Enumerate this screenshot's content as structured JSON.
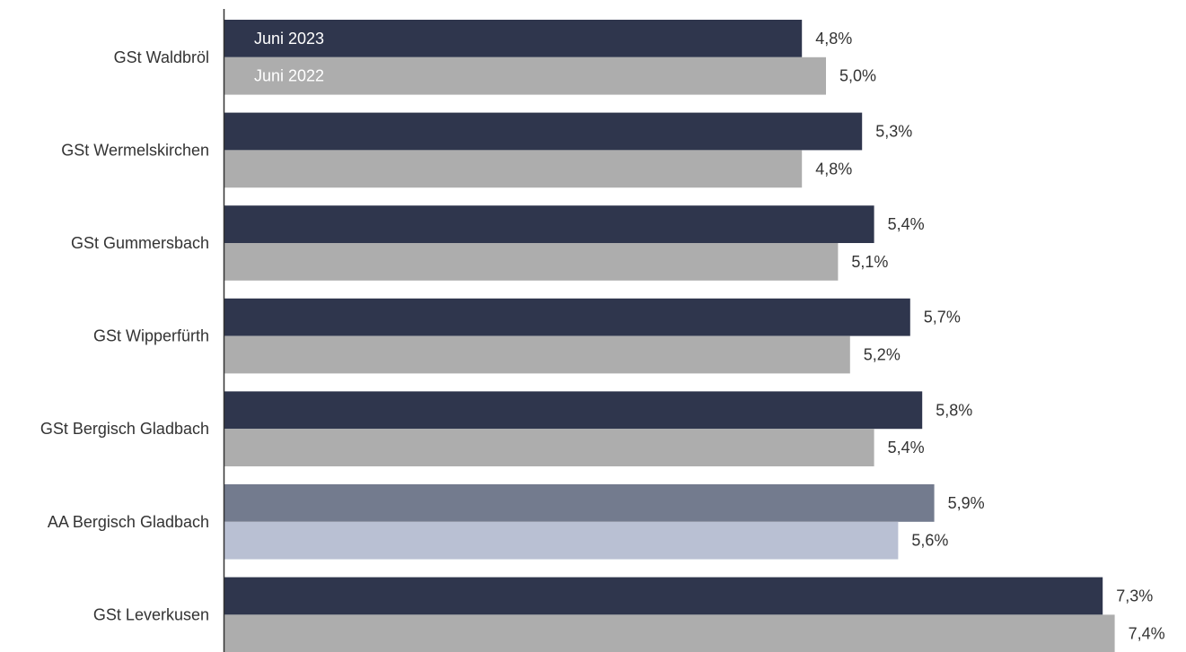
{
  "chart_data": {
    "type": "bar",
    "orientation": "horizontal",
    "categories": [
      "GSt Waldbröl",
      "GSt Wermelskirchen",
      "GSt Gummersbach",
      "GSt Wipperfürth",
      "GSt Bergisch Gladbach",
      "AA Bergisch Gladbach",
      "GSt Leverkusen"
    ],
    "series": [
      {
        "name": "Juni 2023",
        "values": [
          4.8,
          5.3,
          5.4,
          5.7,
          5.8,
          5.9,
          7.3
        ],
        "labels": [
          "4,8%",
          "5,3%",
          "5,4%",
          "5,7%",
          "5,8%",
          "5,9%",
          "7,3%"
        ],
        "color": "#2f364d",
        "highlight_color": "#737b8e"
      },
      {
        "name": "Juni 2022",
        "values": [
          5.0,
          4.8,
          5.1,
          5.2,
          5.4,
          5.6,
          7.4
        ],
        "labels": [
          "5,0%",
          "4,8%",
          "5,1%",
          "5,2%",
          "5,4%",
          "5,6%",
          "7,4%"
        ],
        "color": "#adadad",
        "highlight_color": "#b9c0d3"
      }
    ],
    "highlight_category": "AA Bergisch Gladbach",
    "legend_placement": "inside-first-bars",
    "xlim": [
      0,
      7.4
    ],
    "title": "",
    "xlabel": "",
    "ylabel": "",
    "grid": false,
    "axis_color": "#333333",
    "label_color": "#333333",
    "legend_text_color": "#ffffff"
  }
}
